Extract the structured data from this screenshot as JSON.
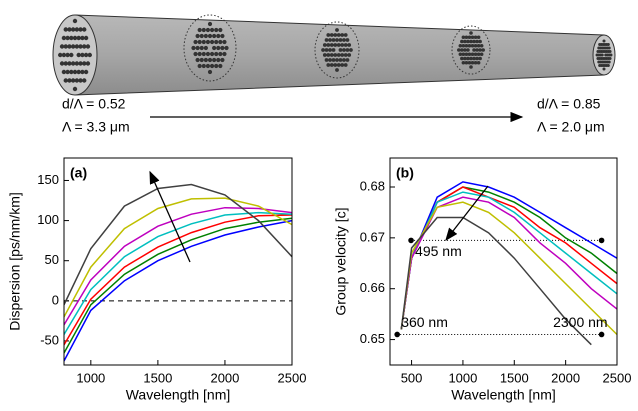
{
  "diagram": {
    "left": [
      "d/Λ = 0.52",
      "Λ = 3.3 μm"
    ],
    "right": [
      "d/Λ = 0.85",
      "Λ = 2.0 μm"
    ]
  },
  "chart_data": [
    {
      "type": "line",
      "panel": "(a)",
      "x_label": "Wavelength [nm]",
      "y_label": "Dispersion [ps/nm/km]",
      "x": [
        800,
        1000,
        1250,
        1500,
        1750,
        2000,
        2250,
        2500
      ],
      "xlim": [
        800,
        2500
      ],
      "xticks": [
        1000,
        1500,
        2000,
        2500
      ],
      "ylim": [
        -80,
        178
      ],
      "yticks": [
        -50,
        0,
        50,
        100,
        150
      ],
      "ref_lines": [
        {
          "x": [
            800,
            2500
          ],
          "y": 0,
          "style": "dashed"
        }
      ],
      "series": [
        {
          "color": "#0000ff",
          "values": [
            -75,
            -12,
            25,
            50,
            68,
            82,
            92,
            100
          ]
        },
        {
          "color": "#008000",
          "values": [
            -65,
            -5,
            33,
            58,
            76,
            90,
            98,
            103
          ]
        },
        {
          "color": "#ff0000",
          "values": [
            -55,
            2,
            42,
            67,
            85,
            98,
            106,
            107
          ]
        },
        {
          "color": "#00bfbf",
          "values": [
            -42,
            14,
            55,
            80,
            96,
            107,
            110,
            108
          ]
        },
        {
          "color": "#bf00bf",
          "values": [
            -30,
            26,
            68,
            93,
            108,
            116,
            115,
            110
          ]
        },
        {
          "color": "#bfbf00",
          "values": [
            -20,
            42,
            90,
            115,
            127,
            128,
            118,
            95
          ]
        },
        {
          "color": "#404040",
          "values": [
            -5,
            65,
            118,
            140,
            145,
            132,
            100,
            55
          ]
        }
      ]
    },
    {
      "type": "line",
      "panel": "(b)",
      "x_label": "Wavelength [nm]",
      "y_label": "Group velocity [c]",
      "x": [
        400,
        500,
        750,
        1000,
        1250,
        1500,
        1750,
        2000,
        2250,
        2500
      ],
      "xlim": [
        290,
        2500
      ],
      "xticks": [
        500,
        1000,
        1500,
        2000,
        2500
      ],
      "ylim": [
        0.645,
        0.6857
      ],
      "yticks": [
        0.65,
        0.66,
        0.67,
        0.68
      ],
      "ref_lines": [
        {
          "x": [
            495,
            2350
          ],
          "y": 0.6695,
          "style": "dotted"
        },
        {
          "x": [
            360,
            2350
          ],
          "y": 0.651,
          "style": "dotted"
        }
      ],
      "annotations": [
        {
          "text": "495 nm",
          "x": 495,
          "y": 0.6695
        },
        {
          "text": "360 nm",
          "x": 360,
          "y": 0.651
        },
        {
          "text": "2300 nm",
          "x": 2350,
          "y": 0.651
        }
      ],
      "series": [
        {
          "color": "#0000ff",
          "values": [
            0.652,
            0.666,
            0.678,
            0.681,
            0.68,
            0.678,
            0.675,
            0.672,
            0.669,
            0.666
          ]
        },
        {
          "color": "#008000",
          "values": [
            0.652,
            0.666,
            0.677,
            0.68,
            0.679,
            0.677,
            0.674,
            0.67,
            0.667,
            0.663
          ]
        },
        {
          "color": "#ff0000",
          "values": [
            0.652,
            0.666,
            0.677,
            0.68,
            0.678,
            0.676,
            0.672,
            0.669,
            0.665,
            0.661
          ]
        },
        {
          "color": "#00bfbf",
          "values": [
            0.652,
            0.666,
            0.677,
            0.679,
            0.678,
            0.675,
            0.671,
            0.667,
            0.663,
            0.659
          ]
        },
        {
          "color": "#bf00bf",
          "values": [
            0.652,
            0.666,
            0.676,
            0.678,
            0.677,
            0.674,
            0.669,
            0.665,
            0.66,
            0.656
          ]
        },
        {
          "color": "#bfbf00",
          "values": [
            0.652,
            0.667,
            0.676,
            0.677,
            0.675,
            0.671,
            0.666,
            0.661,
            0.656,
            0.651
          ]
        },
        {
          "color": "#404040",
          "values": [
            0.652,
            0.668,
            0.674,
            0.674,
            0.671,
            0.666,
            0.66,
            0.654,
            0.649,
            null
          ]
        }
      ]
    }
  ]
}
